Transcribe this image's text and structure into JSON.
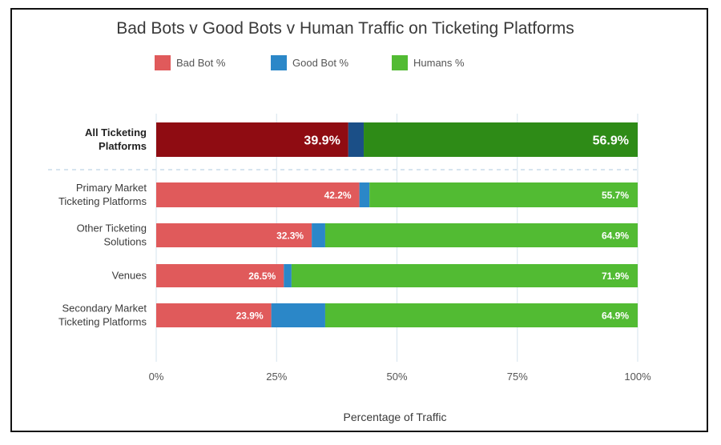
{
  "chart_data": {
    "type": "bar",
    "orientation": "horizontal",
    "stacked": true,
    "title": "Bad Bots v Good Bots v Human Traffic on Ticketing Platforms",
    "xlabel": "Percentage of Traffic",
    "ylabel": "",
    "xlim": [
      0,
      100
    ],
    "x_ticks": [
      "0%",
      "25%",
      "50%",
      "75%",
      "100%"
    ],
    "grid": true,
    "legend_position": "top",
    "categories": [
      [
        "All Ticketing",
        "Platforms"
      ],
      [
        "Primary Market",
        "Ticketing Platforms"
      ],
      [
        "Other Ticketing",
        "Solutions"
      ],
      [
        "Venues"
      ],
      [
        "Secondary Market",
        "Ticketing Platforms"
      ]
    ],
    "highlighted_category_index": 0,
    "series": [
      {
        "name": "Bad Bot %",
        "color": "#e05a5b",
        "highlight_color": "#8f0c12",
        "values": [
          39.9,
          42.2,
          32.3,
          26.5,
          23.9
        ],
        "labels": [
          "39.9%",
          "42.2%",
          "32.3%",
          "26.5%",
          "23.9%"
        ]
      },
      {
        "name": "Good Bot %",
        "color": "#2b87c8",
        "highlight_color": "#1b4f87",
        "values": [
          3.2,
          2.1,
          2.8,
          1.6,
          11.2
        ],
        "labels": [
          "3.2%",
          "2.1%",
          "2.8%",
          "1.6%",
          "11.2%"
        ]
      },
      {
        "name": "Humans %",
        "color": "#52bb33",
        "highlight_color": "#2e8b17",
        "values": [
          56.9,
          55.7,
          64.9,
          71.9,
          64.9
        ],
        "labels": [
          "56.9%",
          "55.7%",
          "64.9%",
          "71.9%",
          "64.9%"
        ]
      }
    ]
  }
}
